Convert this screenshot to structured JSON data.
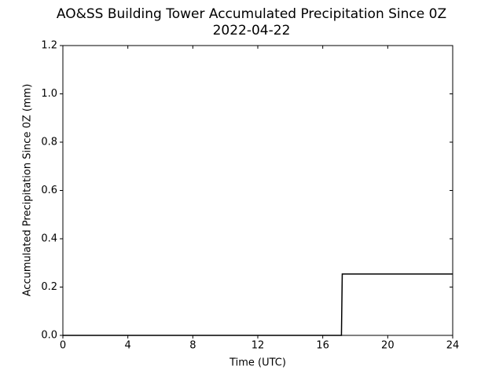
{
  "chart_data": {
    "type": "line",
    "title": "AO&SS Building Tower Accumulated Precipitation Since 0Z",
    "subtitle": "2022-04-22",
    "x_label": "Time (UTC)",
    "y_label": "Accumulated Precipitation Since 0Z (mm)",
    "series": [
      {
        "color": "#000000",
        "x": [
          0,
          17.15,
          17.2,
          24
        ],
        "values": [
          0,
          0,
          0.254,
          0.254
        ]
      }
    ],
    "xlim": [
      0,
      24
    ],
    "xticks": [
      0,
      4,
      8,
      12,
      16,
      20,
      24
    ],
    "ylim": [
      0,
      1.2
    ],
    "yticks": [
      {
        "value": 0,
        "label": "0.0"
      },
      0.2,
      0.4,
      0.6,
      0.8,
      {
        "value": 1,
        "label": "1.0"
      },
      1.2
    ],
    "grid": false
  }
}
